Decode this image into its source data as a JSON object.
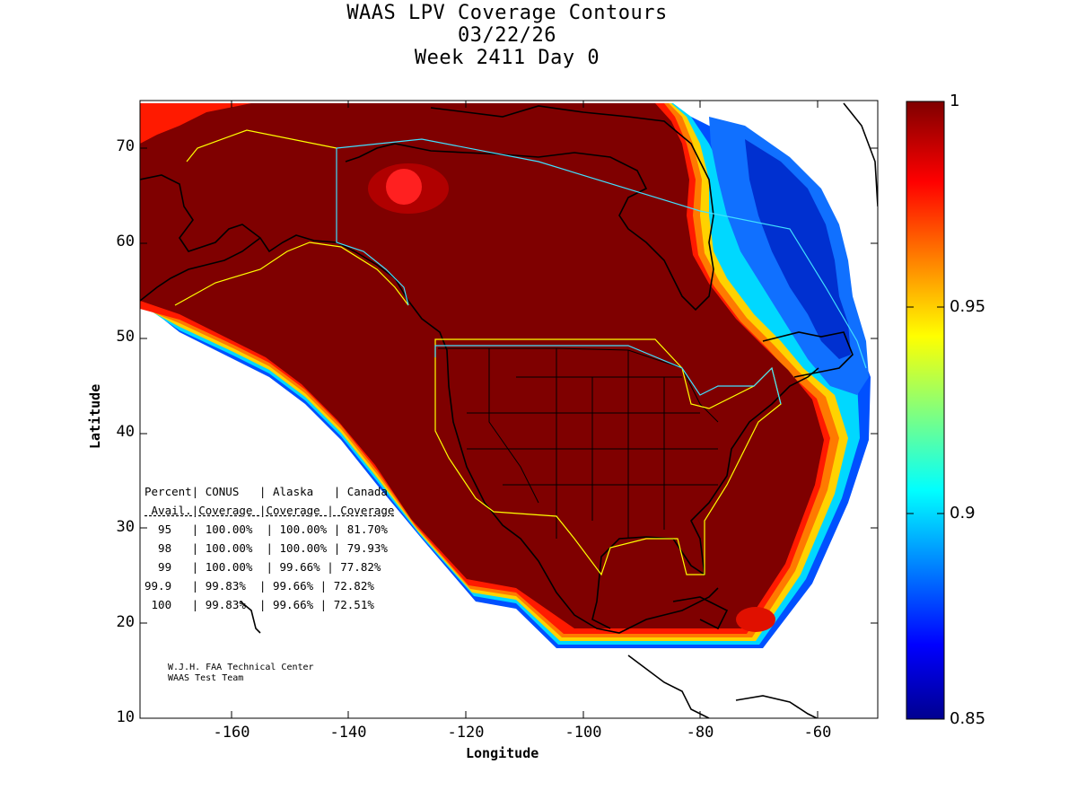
{
  "title": {
    "line1": "WAAS LPV Coverage Contours",
    "line2": "03/22/26",
    "line3": "Week 2411 Day 0"
  },
  "axes": {
    "xlabel": "Longitude",
    "ylabel": "Latitude",
    "xticks": [
      "-160",
      "-140",
      "-120",
      "-100",
      "-80",
      "-60"
    ],
    "yticks": [
      "70",
      "60",
      "50",
      "40",
      "30",
      "20",
      "10"
    ],
    "xlim": [
      -175,
      -50
    ],
    "ylim": [
      10,
      75
    ]
  },
  "colorbar": {
    "ticks": [
      "1",
      "0.95",
      "0.9",
      "0.85"
    ],
    "range": [
      0.85,
      1
    ]
  },
  "table": {
    "header1": "Percent| CONUS   | Alaska   | Canada",
    "header2": " Avail.|Coverage |Coverage | Coverage",
    "rows": [
      "  95   | 100.00%  | 100.00% | 81.70%",
      "  98   | 100.00%  | 100.00% | 79.93%",
      "  99   | 100.00%  | 99.66% | 77.82%",
      "99.9   | 99.83%  | 99.66% | 72.82%",
      " 100   | 99.83%  | 99.66% | 72.51%"
    ]
  },
  "credit": {
    "line1": "W.J.H. FAA Technical Center",
    "line2": "WAAS Test Team"
  },
  "colors": {
    "full_coverage": "#7f0000",
    "red": "#ff0000",
    "orange": "#ff8c00",
    "yellow": "#ffff00",
    "cyan": "#00d8ff",
    "blue": "#0050ff",
    "navy": "#00008f"
  }
}
